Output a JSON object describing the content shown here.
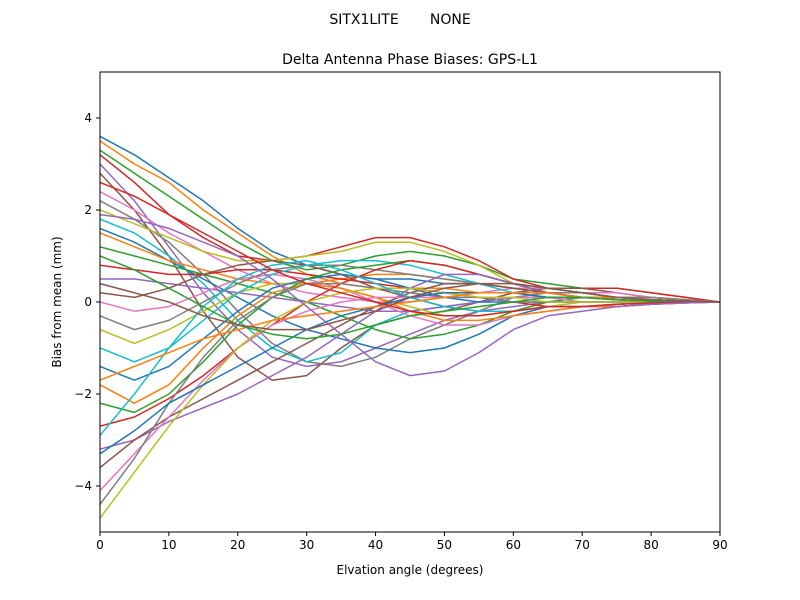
{
  "figure": {
    "suptitle": "SITX1LITE       NONE"
  },
  "chart_data": {
    "type": "line",
    "title": "Delta Antenna Phase Biases: GPS-L1",
    "xlabel": "Elvation angle (degrees)",
    "ylabel": "Bias from mean (mm)",
    "xlim": [
      0,
      90
    ],
    "ylim": [
      -5,
      5
    ],
    "xticks": [
      0,
      10,
      20,
      30,
      40,
      50,
      60,
      70,
      80,
      90
    ],
    "yticks": [
      -4,
      -2,
      0,
      2,
      4
    ],
    "grid": false,
    "legend": "none",
    "x": [
      0,
      5,
      10,
      15,
      20,
      25,
      30,
      35,
      40,
      45,
      50,
      55,
      60,
      65,
      70,
      75,
      80,
      85,
      90
    ],
    "colors": [
      "#1f77b4",
      "#ff7f0e",
      "#2ca02c",
      "#d62728",
      "#9467bd",
      "#8c564b",
      "#e377c2",
      "#7f7f7f",
      "#bcbd22",
      "#17becf"
    ],
    "series": [
      {
        "values": [
          3.6,
          3.2,
          2.7,
          2.2,
          1.6,
          1.1,
          0.8,
          0.6,
          0.5,
          0.5,
          0.4,
          0.4,
          0.3,
          0.2,
          0.2,
          0.1,
          0.1,
          0.05,
          0
        ]
      },
      {
        "values": [
          3.5,
          3.0,
          2.6,
          2.0,
          1.5,
          1.0,
          0.6,
          0.4,
          0.3,
          0.3,
          0.3,
          0.2,
          0.2,
          0.2,
          0.1,
          0.1,
          0.05,
          0.02,
          0
        ]
      },
      {
        "values": [
          3.3,
          2.8,
          2.3,
          1.8,
          1.3,
          0.9,
          0.7,
          0.8,
          1.0,
          1.1,
          1.0,
          0.8,
          0.5,
          0.4,
          0.3,
          0.3,
          0.2,
          0.1,
          0
        ]
      },
      {
        "values": [
          3.2,
          2.6,
          1.9,
          1.4,
          1.0,
          0.9,
          1.0,
          1.2,
          1.4,
          1.4,
          1.2,
          0.9,
          0.5,
          0.3,
          0.3,
          0.3,
          0.2,
          0.1,
          0
        ]
      },
      {
        "values": [
          3.0,
          2.2,
          1.2,
          0.2,
          -0.6,
          -1.2,
          -1.4,
          -1.3,
          -1.0,
          -0.7,
          -0.4,
          -0.2,
          -0.1,
          0.0,
          0.1,
          0.1,
          0.05,
          0.02,
          0
        ]
      },
      {
        "values": [
          2.8,
          2.0,
          1.0,
          -0.2,
          -1.2,
          -1.7,
          -1.6,
          -1.0,
          -0.5,
          -0.3,
          -0.2,
          0.0,
          0.2,
          0.3,
          0.3,
          0.2,
          0.1,
          0.05,
          0
        ]
      },
      {
        "values": [
          2.4,
          2.0,
          1.5,
          1.1,
          0.7,
          0.4,
          0.2,
          0.1,
          0.0,
          0.0,
          0.1,
          0.2,
          0.3,
          0.3,
          0.2,
          0.2,
          0.1,
          0.05,
          0
        ]
      },
      {
        "values": [
          2.2,
          1.8,
          1.3,
          0.6,
          -0.2,
          -0.9,
          -1.3,
          -1.4,
          -1.2,
          -0.8,
          -0.5,
          -0.2,
          0.1,
          0.2,
          0.2,
          0.1,
          0.1,
          0.05,
          0
        ]
      },
      {
        "values": [
          2.0,
          1.7,
          1.4,
          1.1,
          0.9,
          0.9,
          1.0,
          1.1,
          1.3,
          1.3,
          1.1,
          0.8,
          0.4,
          0.2,
          0.1,
          0.1,
          0.05,
          0.02,
          0
        ]
      },
      {
        "values": [
          1.8,
          1.5,
          1.0,
          0.4,
          -0.4,
          -1.0,
          -1.3,
          -1.1,
          -0.5,
          -0.2,
          -0.1,
          0.0,
          0.1,
          0.1,
          0.1,
          0.1,
          0.05,
          0.02,
          0
        ]
      },
      {
        "values": [
          1.6,
          1.3,
          0.9,
          0.5,
          0.1,
          -0.3,
          -0.6,
          -0.8,
          -1.0,
          -1.1,
          -1.0,
          -0.7,
          -0.3,
          -0.1,
          -0.1,
          -0.1,
          -0.05,
          -0.02,
          0
        ]
      },
      {
        "values": [
          1.5,
          1.2,
          0.9,
          0.7,
          0.5,
          0.4,
          0.4,
          0.5,
          0.6,
          0.6,
          0.5,
          0.4,
          0.3,
          0.2,
          0.1,
          0.1,
          0.05,
          0.02,
          0
        ]
      },
      {
        "values": [
          1.2,
          1.0,
          0.8,
          0.6,
          0.4,
          0.2,
          0.0,
          -0.3,
          -0.6,
          -0.8,
          -0.7,
          -0.5,
          -0.2,
          0.0,
          0.1,
          0.1,
          0.05,
          0.02,
          0
        ]
      },
      {
        "values": [
          0.8,
          0.7,
          0.6,
          0.6,
          0.7,
          0.7,
          0.6,
          0.5,
          0.4,
          0.3,
          0.2,
          0.1,
          0.0,
          -0.1,
          -0.1,
          -0.1,
          -0.05,
          -0.02,
          0
        ]
      },
      {
        "values": [
          0.5,
          0.5,
          0.4,
          0.3,
          0.2,
          0.1,
          0.0,
          -0.1,
          -0.2,
          -0.2,
          -0.1,
          0.0,
          0.1,
          0.1,
          0.1,
          0.05,
          0.02,
          0.01,
          0
        ]
      },
      {
        "values": [
          0.2,
          0.1,
          0.3,
          0.6,
          0.8,
          0.9,
          0.8,
          0.6,
          0.3,
          0.1,
          -0.1,
          -0.2,
          -0.2,
          -0.1,
          -0.1,
          -0.05,
          -0.02,
          -0.01,
          0
        ]
      },
      {
        "values": [
          0.0,
          -0.2,
          -0.1,
          0.2,
          0.5,
          0.6,
          0.5,
          0.3,
          0.0,
          -0.3,
          -0.5,
          -0.5,
          -0.3,
          -0.2,
          -0.1,
          -0.1,
          -0.05,
          -0.02,
          0
        ]
      },
      {
        "values": [
          -0.3,
          -0.6,
          -0.4,
          0.0,
          0.4,
          0.7,
          0.8,
          0.8,
          0.7,
          0.6,
          0.5,
          0.4,
          0.3,
          0.2,
          0.1,
          0.1,
          0.05,
          0.02,
          0
        ]
      },
      {
        "values": [
          -0.6,
          -0.9,
          -0.6,
          -0.2,
          0.2,
          0.4,
          0.4,
          0.3,
          0.1,
          -0.1,
          -0.3,
          -0.3,
          -0.2,
          -0.1,
          0.0,
          0.0,
          0.0,
          0.0,
          0
        ]
      },
      {
        "values": [
          -1.0,
          -1.3,
          -1.0,
          -0.4,
          0.2,
          0.6,
          0.8,
          0.9,
          0.9,
          0.8,
          0.6,
          0.4,
          0.2,
          0.1,
          0.1,
          0.05,
          0.02,
          0.01,
          0
        ]
      },
      {
        "values": [
          -1.4,
          -1.7,
          -1.4,
          -0.8,
          -0.2,
          0.3,
          0.5,
          0.6,
          0.5,
          0.3,
          0.1,
          0.0,
          0.0,
          0.0,
          0.0,
          0.0,
          0.0,
          0.0,
          0
        ]
      },
      {
        "values": [
          -1.8,
          -2.2,
          -1.8,
          -1.0,
          -0.3,
          0.2,
          0.4,
          0.3,
          0.1,
          -0.2,
          -0.4,
          -0.4,
          -0.3,
          -0.2,
          -0.1,
          -0.1,
          -0.05,
          -0.02,
          0
        ]
      },
      {
        "values": [
          -2.2,
          -2.4,
          -2.0,
          -1.3,
          -0.5,
          0.1,
          0.5,
          0.7,
          0.8,
          0.9,
          0.8,
          0.6,
          0.4,
          0.3,
          0.2,
          0.1,
          0.05,
          0.02,
          0
        ]
      },
      {
        "values": [
          -2.7,
          -2.5,
          -2.1,
          -1.6,
          -1.0,
          -0.5,
          0.0,
          0.4,
          0.7,
          0.9,
          0.8,
          0.6,
          0.4,
          0.2,
          0.1,
          0.1,
          0.05,
          0.02,
          0
        ]
      },
      {
        "values": [
          -3.2,
          -3.0,
          -2.6,
          -2.3,
          -2.0,
          -1.6,
          -1.2,
          -0.7,
          -0.2,
          0.3,
          0.6,
          0.6,
          0.4,
          0.2,
          0.1,
          0.1,
          0.05,
          0.02,
          0
        ]
      },
      {
        "values": [
          -3.6,
          -3.0,
          -2.5,
          -2.1,
          -1.7,
          -1.3,
          -0.9,
          -0.5,
          -0.1,
          0.2,
          0.4,
          0.4,
          0.3,
          0.2,
          0.1,
          0.1,
          0.05,
          0.02,
          0
        ]
      },
      {
        "values": [
          -4.1,
          -3.3,
          -2.5,
          -1.7,
          -1.0,
          -0.5,
          -0.2,
          0.0,
          0.1,
          0.1,
          0.1,
          0.1,
          0.1,
          0.1,
          0.0,
          0.0,
          0.0,
          0.0,
          0
        ]
      },
      {
        "values": [
          -4.4,
          -3.4,
          -2.2,
          -1.2,
          -0.4,
          0.1,
          0.4,
          0.4,
          0.3,
          0.2,
          0.1,
          0.1,
          0.0,
          0.0,
          0.0,
          0.0,
          0.0,
          0.0,
          0
        ]
      },
      {
        "values": [
          -4.7,
          -3.7,
          -2.7,
          -1.8,
          -1.0,
          -0.4,
          0.0,
          0.2,
          0.3,
          0.3,
          0.2,
          0.1,
          0.1,
          0.0,
          0.0,
          0.0,
          0.0,
          0.0,
          0
        ]
      },
      {
        "values": [
          -2.9,
          -2.0,
          -1.0,
          -0.1,
          0.5,
          0.8,
          0.9,
          0.7,
          0.4,
          0.1,
          -0.1,
          -0.2,
          -0.2,
          -0.1,
          -0.1,
          -0.05,
          -0.02,
          -0.01,
          0
        ]
      },
      {
        "values": [
          -3.3,
          -2.8,
          -2.2,
          -1.8,
          -1.4,
          -1.0,
          -0.6,
          -0.3,
          -0.1,
          0.1,
          0.2,
          0.2,
          0.2,
          0.1,
          0.1,
          0.05,
          0.02,
          0.01,
          0
        ]
      },
      {
        "values": [
          -1.7,
          -1.4,
          -1.1,
          -0.8,
          -0.6,
          -0.4,
          -0.3,
          -0.2,
          -0.1,
          0.0,
          0.1,
          0.2,
          0.2,
          0.2,
          0.1,
          0.1,
          0.05,
          0.02,
          0
        ]
      },
      {
        "values": [
          1.0,
          0.7,
          0.3,
          -0.1,
          -0.5,
          -0.7,
          -0.8,
          -0.7,
          -0.5,
          -0.3,
          -0.2,
          -0.1,
          0.0,
          0.1,
          0.1,
          0.05,
          0.02,
          0.01,
          0
        ]
      },
      {
        "values": [
          2.6,
          2.3,
          1.9,
          1.5,
          1.1,
          0.7,
          0.4,
          0.2,
          0.0,
          -0.2,
          -0.3,
          -0.3,
          -0.2,
          -0.1,
          -0.1,
          -0.05,
          -0.02,
          -0.01,
          0
        ]
      },
      {
        "values": [
          1.9,
          1.8,
          1.6,
          1.3,
          1.0,
          0.5,
          -0.1,
          -0.7,
          -1.3,
          -1.6,
          -1.5,
          -1.1,
          -0.6,
          -0.3,
          -0.2,
          -0.1,
          -0.05,
          -0.02,
          0
        ]
      },
      {
        "values": [
          0.4,
          0.2,
          0.0,
          -0.3,
          -0.5,
          -0.6,
          -0.6,
          -0.4,
          -0.2,
          0.1,
          0.3,
          0.4,
          0.4,
          0.3,
          0.2,
          0.1,
          0.05,
          0.02,
          0
        ]
      }
    ]
  }
}
